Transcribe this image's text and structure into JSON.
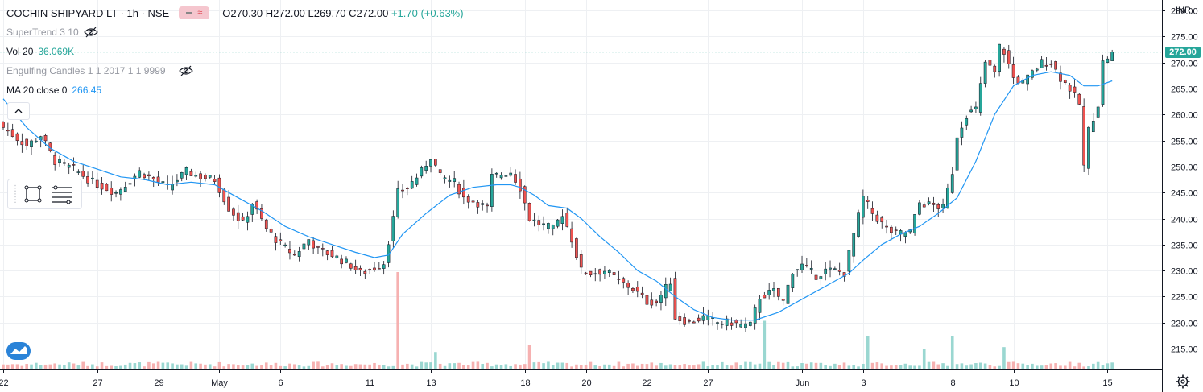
{
  "header": {
    "symbol": "COCHIN SHIPYARD LT · 1h · NSE",
    "open": "O270.30",
    "high": "H272.00",
    "low": "L269.70",
    "close": "C272.00",
    "change": "+1.70 (+0.63%)",
    "badge": "≈"
  },
  "indicators": {
    "supertrend": "SuperTrend 3 10",
    "vol_label": "Vol 20",
    "vol_value": "36.069K",
    "engulfing": "Engulfing Candles 1 1 2017 1 1 9999",
    "ma_label": "MA 20 close 0",
    "ma_value": "266.45"
  },
  "collapse_glyph": "^",
  "currency": "INR",
  "last_price": "272.00",
  "colors": {
    "up": "#26a69a",
    "down": "#ef5350",
    "ma": "#2196f3",
    "grid": "#eef0f3",
    "axis": "#131722"
  },
  "icons": [
    "eye-off-icon",
    "chevron-up-icon",
    "rectangle-tool-icon",
    "fib-tool-icon",
    "tradingview-logo-icon",
    "gear-icon"
  ],
  "chart_data": {
    "type": "candlestick",
    "price_ticks": [
      "280.00",
      "275.00",
      "270.00",
      "265.00",
      "260.00",
      "255.00",
      "250.00",
      "245.00",
      "240.00",
      "235.00",
      "230.00",
      "225.00",
      "220.00",
      "215.00"
    ],
    "ylim": [
      211,
      282
    ],
    "xlim": [
      0,
      243
    ],
    "date_ticks": [
      {
        "label": "22",
        "x": 0
      },
      {
        "label": "27",
        "x": 20
      },
      {
        "label": "29",
        "x": 33
      },
      {
        "label": "May",
        "x": 46
      },
      {
        "label": "6",
        "x": 59
      },
      {
        "label": "11",
        "x": 78
      },
      {
        "label": "13",
        "x": 91
      },
      {
        "label": "18",
        "x": 111
      },
      {
        "label": "20",
        "x": 124
      },
      {
        "label": "22",
        "x": 137
      },
      {
        "label": "27",
        "x": 150
      },
      {
        "label": "Jun",
        "x": 170
      },
      {
        "label": "3",
        "x": 183
      },
      {
        "label": "8",
        "x": 202
      },
      {
        "label": "10",
        "x": 215
      },
      {
        "label": "15",
        "x": 235
      }
    ],
    "anchors": [
      [
        0,
        257.5
      ],
      [
        5,
        254
      ],
      [
        8,
        256
      ],
      [
        11,
        251
      ],
      [
        15,
        249.5
      ],
      [
        19,
        247
      ],
      [
        24,
        245
      ],
      [
        29,
        249
      ],
      [
        31,
        248
      ],
      [
        35,
        246
      ],
      [
        39,
        249
      ],
      [
        42,
        248
      ],
      [
        45,
        247.5
      ],
      [
        48,
        242
      ],
      [
        51,
        239
      ],
      [
        53,
        243
      ],
      [
        56,
        238
      ],
      [
        59,
        235
      ],
      [
        62,
        233
      ],
      [
        65,
        236
      ],
      [
        67,
        234
      ],
      [
        70,
        233
      ],
      [
        74,
        231
      ],
      [
        76,
        229.5
      ],
      [
        79,
        230.5
      ],
      [
        81,
        231.5
      ],
      [
        83,
        240
      ],
      [
        84,
        245
      ],
      [
        86,
        246
      ],
      [
        89,
        249
      ],
      [
        91,
        252
      ],
      [
        93,
        248
      ],
      [
        96,
        247
      ],
      [
        98,
        244
      ],
      [
        101,
        243
      ],
      [
        103,
        242
      ],
      [
        104,
        248
      ],
      [
        108,
        249
      ],
      [
        110,
        246
      ],
      [
        112,
        240
      ],
      [
        114,
        239
      ],
      [
        117,
        238
      ],
      [
        119,
        241
      ],
      [
        121,
        236
      ],
      [
        123,
        230
      ],
      [
        125,
        229.5
      ],
      [
        128,
        230
      ],
      [
        131,
        228
      ],
      [
        134,
        226.5
      ],
      [
        137,
        224
      ],
      [
        139,
        224
      ],
      [
        142,
        228
      ],
      [
        143,
        221
      ],
      [
        146,
        220
      ],
      [
        149,
        221
      ],
      [
        152,
        220
      ],
      [
        155,
        220
      ],
      [
        157,
        219.5
      ],
      [
        159,
        219.5
      ],
      [
        161,
        225
      ],
      [
        164,
        226
      ],
      [
        166,
        224
      ],
      [
        168,
        230
      ],
      [
        170,
        231
      ],
      [
        173,
        229
      ],
      [
        175,
        230
      ],
      [
        177,
        230
      ],
      [
        179,
        229.5
      ],
      [
        181,
        237
      ],
      [
        183,
        244
      ],
      [
        185,
        241
      ],
      [
        188,
        238
      ],
      [
        190,
        237
      ],
      [
        193,
        237.5
      ],
      [
        195,
        243
      ],
      [
        198,
        242.5
      ],
      [
        200,
        242
      ],
      [
        202,
        249
      ],
      [
        203,
        256
      ],
      [
        205,
        260
      ],
      [
        207,
        261
      ],
      [
        209,
        270
      ],
      [
        211,
        268
      ],
      [
        212,
        273
      ],
      [
        213,
        272
      ],
      [
        215,
        267
      ],
      [
        217,
        266
      ],
      [
        219,
        268
      ],
      [
        221,
        270
      ],
      [
        223,
        270
      ],
      [
        225,
        267
      ],
      [
        227,
        265
      ],
      [
        229,
        262
      ],
      [
        230,
        250
      ],
      [
        231,
        257
      ],
      [
        233,
        262
      ],
      [
        234,
        270
      ],
      [
        236,
        272
      ]
    ],
    "ma": [
      [
        0,
        263
      ],
      [
        5,
        257.5
      ],
      [
        10,
        253.5
      ],
      [
        15,
        251
      ],
      [
        20,
        249.5
      ],
      [
        25,
        248
      ],
      [
        30,
        247.5
      ],
      [
        35,
        246.5
      ],
      [
        40,
        247
      ],
      [
        45,
        246.5
      ],
      [
        50,
        244
      ],
      [
        55,
        241.5
      ],
      [
        60,
        238.5
      ],
      [
        65,
        236.5
      ],
      [
        70,
        235
      ],
      [
        75,
        233.5
      ],
      [
        79,
        232.5
      ],
      [
        82,
        233
      ],
      [
        85,
        237
      ],
      [
        90,
        241
      ],
      [
        95,
        244.5
      ],
      [
        100,
        246
      ],
      [
        105,
        246.5
      ],
      [
        108,
        246.5
      ],
      [
        110,
        246
      ],
      [
        113,
        244.5
      ],
      [
        116,
        242.5
      ],
      [
        120,
        242
      ],
      [
        123,
        240
      ],
      [
        127,
        236.5
      ],
      [
        131,
        233.5
      ],
      [
        135,
        230
      ],
      [
        139,
        228
      ],
      [
        143,
        225
      ],
      [
        147,
        222.5
      ],
      [
        151,
        221
      ],
      [
        155,
        220.5
      ],
      [
        160,
        220.5
      ],
      [
        165,
        222
      ],
      [
        170,
        224.5
      ],
      [
        175,
        227
      ],
      [
        180,
        229.5
      ],
      [
        183,
        232
      ],
      [
        187,
        235
      ],
      [
        191,
        237
      ],
      [
        195,
        238.5
      ],
      [
        199,
        241
      ],
      [
        203,
        244
      ],
      [
        207,
        251
      ],
      [
        211,
        260
      ],
      [
        215,
        265.5
      ],
      [
        219,
        267.5
      ],
      [
        223,
        268.2
      ],
      [
        227,
        267.5
      ],
      [
        230,
        265.5
      ],
      [
        233,
        265.5
      ],
      [
        236,
        266.45
      ]
    ],
    "volume_scale_max": 100,
    "volume_spikes": [
      {
        "x": 84,
        "v": 100,
        "dir": "down"
      },
      {
        "x": 112,
        "v": 25,
        "dir": "down"
      },
      {
        "x": 162,
        "v": 50,
        "dir": "up"
      },
      {
        "x": 184,
        "v": 34,
        "dir": "up"
      },
      {
        "x": 202,
        "v": 34,
        "dir": "up"
      },
      {
        "x": 196,
        "v": 21,
        "dir": "up"
      },
      {
        "x": 92,
        "v": 18,
        "dir": "up"
      },
      {
        "x": 213,
        "v": 23,
        "dir": "up"
      }
    ]
  }
}
